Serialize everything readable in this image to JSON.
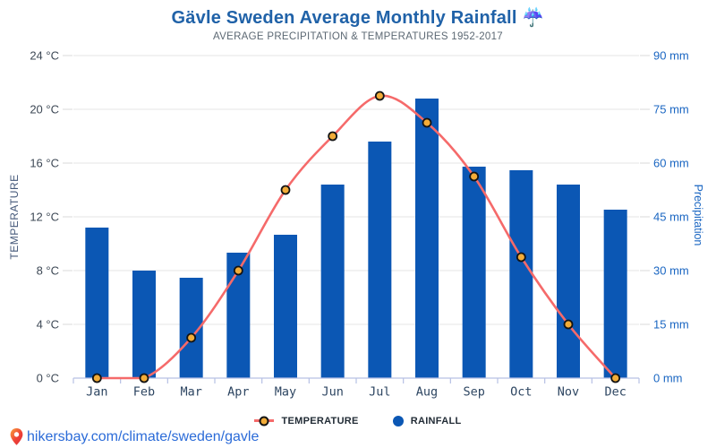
{
  "header": {
    "title": "Gävle Sweden Average Monthly Rainfall ☔",
    "subtitle": "AVERAGE PRECIPITATION & TEMPERATURES 1952-2017"
  },
  "legend": {
    "items": [
      {
        "label": "TEMPERATURE",
        "marker": "orange-dot-on-red-line"
      },
      {
        "label": "RAINFALL",
        "marker": "blue-dot"
      }
    ]
  },
  "footer": {
    "icon": "location-pin-icon",
    "link_text": "hikersbay.com/climate/sweden/gavle"
  },
  "chart_data": {
    "type": "bar",
    "combo": "bar+line",
    "title": "Gävle Sweden Average Monthly Rainfall",
    "subtitle": "AVERAGE PRECIPITATION & TEMPERATURES 1952-2017",
    "categories": [
      "Jan",
      "Feb",
      "Mar",
      "Apr",
      "May",
      "Jun",
      "Jul",
      "Aug",
      "Sep",
      "Oct",
      "Nov",
      "Dec"
    ],
    "series": [
      {
        "name": "RAINFALL",
        "type": "bar",
        "axis": "right",
        "unit": "mm",
        "values": [
          42,
          30,
          28,
          35,
          40,
          54,
          66,
          78,
          59,
          58,
          54,
          47
        ]
      },
      {
        "name": "TEMPERATURE",
        "type": "line",
        "axis": "left",
        "unit": "°C",
        "values": [
          0,
          0,
          3,
          8,
          14,
          18,
          21,
          19,
          15,
          9,
          4,
          0
        ]
      }
    ],
    "y_left": {
      "label": "TEMPERATURE",
      "unit": "°C",
      "min": 0,
      "max": 24,
      "ticks": [
        0,
        4,
        8,
        12,
        16,
        20,
        24
      ]
    },
    "y_right": {
      "label": "Precipitation",
      "unit": "mm",
      "min": 0,
      "max": 90,
      "ticks": [
        0,
        15,
        30,
        45,
        60,
        75,
        90
      ]
    },
    "grid": true,
    "legend_position": "bottom"
  },
  "colors": {
    "bar": "#0b57b4",
    "line": "#f56a6a",
    "marker_fill": "#f2ac38",
    "marker_stroke": "#141414",
    "title": "#2062a8",
    "subtitle": "#5c6873",
    "grid": "#e6e6e6",
    "axis_line": "#b6c0e4",
    "tick_dash": "#d9d9d9",
    "left_tick_text": "#3d4855",
    "right_tick_text": "#1a66c2",
    "left_axis_title": "#45597a",
    "month_text": "#2e4662",
    "legend_text": "#222c36",
    "link": "#2b6bd8"
  }
}
